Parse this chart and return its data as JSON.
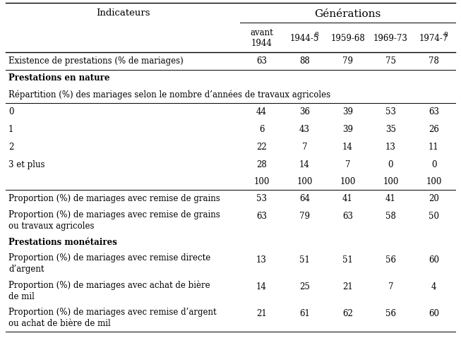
{
  "title_generations": "Générations",
  "col_header_indicateurs": "Indicateurs",
  "col_headers_main": [
    "avant\n1944",
    "1944-5",
    "1959-68",
    "1969-73",
    "1974-7"
  ],
  "col_headers_sup": [
    "",
    "8",
    "",
    "",
    "8"
  ],
  "rows": [
    {
      "label": "Existence de prestations (% de mariages)",
      "values": [
        "63",
        "88",
        "79",
        "75",
        "78"
      ],
      "bold": false,
      "separator_above": true,
      "indent": 0,
      "multiline": false
    },
    {
      "label": "Prestations en nature",
      "values": [
        "",
        "",
        "",
        "",
        ""
      ],
      "bold": true,
      "separator_above": true,
      "indent": 0,
      "multiline": false
    },
    {
      "label": "Répartition (%) des mariages selon le nombre d’années de travaux agricoles",
      "values": [
        "",
        "",
        "",
        "",
        ""
      ],
      "bold": false,
      "separator_above": false,
      "indent": 0,
      "multiline": false
    },
    {
      "label": "0",
      "values": [
        "44",
        "36",
        "39",
        "53",
        "63"
      ],
      "bold": false,
      "separator_above": true,
      "indent": 0,
      "multiline": false
    },
    {
      "label": "1",
      "values": [
        "6",
        "43",
        "39",
        "35",
        "26"
      ],
      "bold": false,
      "separator_above": false,
      "indent": 0,
      "multiline": false
    },
    {
      "label": "2",
      "values": [
        "22",
        "7",
        "14",
        "13",
        "11"
      ],
      "bold": false,
      "separator_above": false,
      "indent": 0,
      "multiline": false
    },
    {
      "label": "3 et plus",
      "values": [
        "28",
        "14",
        "7",
        "0",
        "0"
      ],
      "bold": false,
      "separator_above": false,
      "indent": 0,
      "multiline": false
    },
    {
      "label": "",
      "values": [
        "100",
        "100",
        "100",
        "100",
        "100"
      ],
      "bold": false,
      "separator_above": false,
      "indent": 0,
      "multiline": false
    },
    {
      "label": "Proportion (%) de mariages avec remise de grains",
      "values": [
        "53",
        "64",
        "41",
        "41",
        "20"
      ],
      "bold": false,
      "separator_above": true,
      "indent": 0,
      "multiline": false
    },
    {
      "label": "Proportion (%) de mariages avec remise de grains\nou travaux agricoles",
      "values": [
        "63",
        "79",
        "63",
        "58",
        "50"
      ],
      "bold": false,
      "separator_above": false,
      "indent": 0,
      "multiline": true
    },
    {
      "label": "Prestations monétaires",
      "values": [
        "",
        "",
        "",
        "",
        ""
      ],
      "bold": true,
      "separator_above": false,
      "indent": 0,
      "multiline": false
    },
    {
      "label": "Proportion (%) de mariages avec remise directe\nd’argent",
      "values": [
        "13",
        "51",
        "51",
        "56",
        "60"
      ],
      "bold": false,
      "separator_above": false,
      "indent": 0,
      "multiline": true
    },
    {
      "label": "Proportion (%) de mariages avec achat de bière\nde mil",
      "values": [
        "14",
        "25",
        "21",
        "7",
        "4"
      ],
      "bold": false,
      "separator_above": false,
      "indent": 0,
      "multiline": true
    },
    {
      "label": "Proportion (%) de mariages avec remise d’argent\nou achat de bière de mil",
      "values": [
        "21",
        "61",
        "62",
        "56",
        "60"
      ],
      "bold": false,
      "separator_above": false,
      "indent": 0,
      "multiline": true
    }
  ],
  "bg_color": "#ffffff",
  "text_color": "#000000",
  "font_size": 8.5,
  "header_font_size": 9.5
}
